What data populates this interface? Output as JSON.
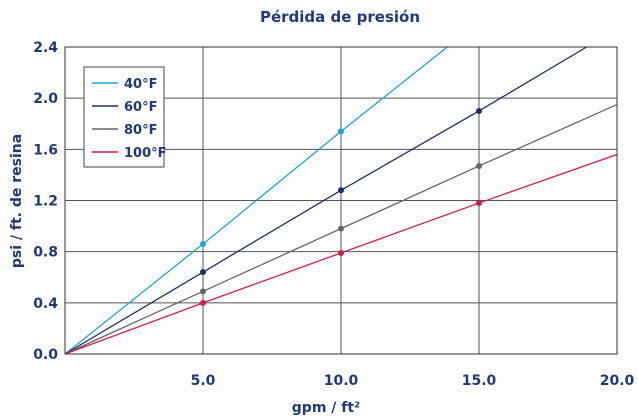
{
  "chart_data": {
    "type": "line",
    "title": "Pérdida de presión",
    "xlabel": "gpm / ft²",
    "ylabel": "psi / ft.  de resina",
    "xlim": [
      0,
      20
    ],
    "ylim": [
      0,
      2.4
    ],
    "x_ticks": [
      "5.0",
      "10.0",
      "15.0",
      "20.0"
    ],
    "y_ticks": [
      "0.0",
      "0.4",
      "0.8",
      "1.2",
      "1.6",
      "2.0",
      "2.4"
    ],
    "grid": true,
    "legend_position": "top-left",
    "series": [
      {
        "name": "40°F",
        "color": "#1aa6d6",
        "x": [
          0,
          5,
          10,
          13.85
        ],
        "y": [
          0,
          0.86,
          1.74,
          2.4
        ],
        "markers": [
          5,
          10
        ]
      },
      {
        "name": "60°F",
        "color": "#1a2f66",
        "x": [
          0,
          5,
          10,
          15,
          18.9
        ],
        "y": [
          0,
          0.64,
          1.28,
          1.9,
          2.4
        ],
        "markers": [
          5,
          10,
          15
        ]
      },
      {
        "name": "80°F",
        "color": "#666666",
        "x": [
          0,
          5,
          10,
          15,
          20
        ],
        "y": [
          0,
          0.49,
          0.98,
          1.47,
          1.95
        ],
        "markers": [
          5,
          10,
          15
        ]
      },
      {
        "name": "100°F",
        "color": "#cc1f45",
        "x": [
          0,
          5,
          10,
          15,
          20
        ],
        "y": [
          0,
          0.4,
          0.79,
          1.18,
          1.56
        ],
        "markers": [
          5,
          10,
          15
        ]
      }
    ]
  }
}
